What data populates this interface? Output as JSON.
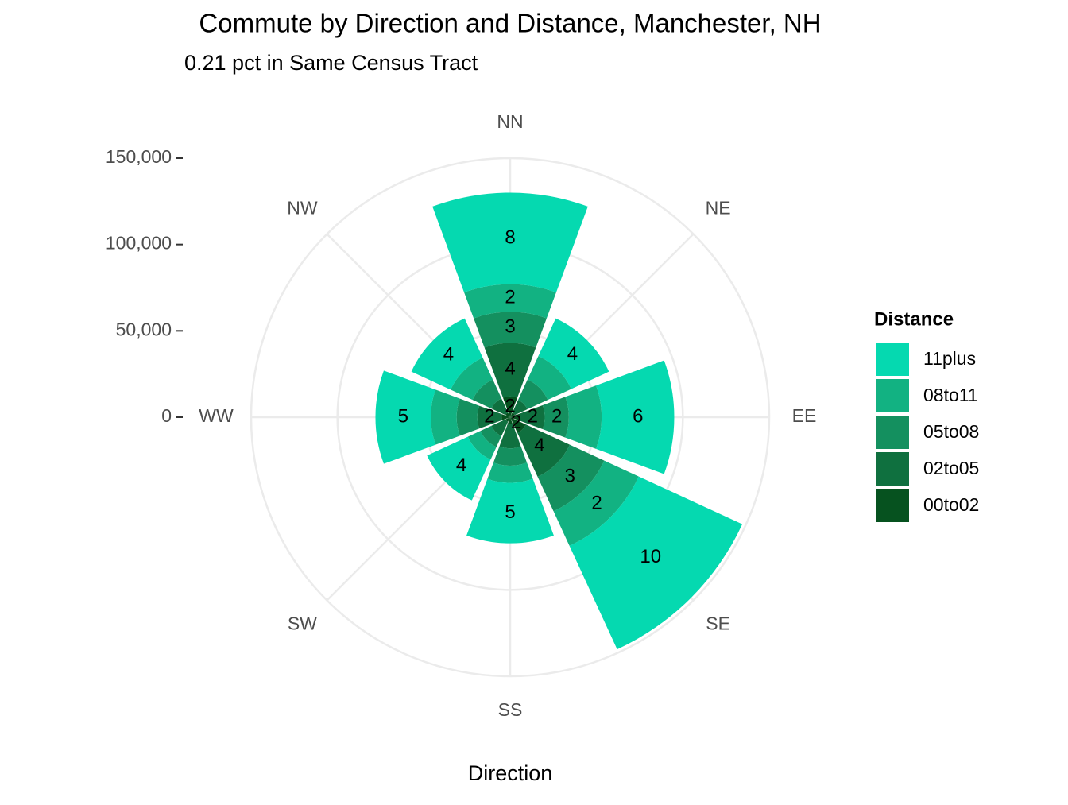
{
  "chart_data": {
    "type": "polar_stacked_bar",
    "title": "Commute by Direction and Distance, Manchester, NH",
    "subtitle": "0.21 pct in Same Census Tract",
    "x_label": "Direction",
    "legend_title": "Distance",
    "categories": [
      "NN",
      "NE",
      "EE",
      "SE",
      "SS",
      "SW",
      "WW",
      "NW"
    ],
    "series": [
      {
        "name": "00to02",
        "color": "#06521f",
        "values": [
          12000,
          3000,
          6000,
          10000,
          4000,
          3000,
          5000,
          3000
        ],
        "labels": [
          "2",
          null,
          null,
          "2",
          null,
          null,
          null,
          null
        ]
      },
      {
        "name": "02to05",
        "color": "#0f703f",
        "values": [
          31000,
          8000,
          14000,
          28000,
          14000,
          9000,
          14000,
          9000
        ],
        "labels": [
          "4",
          null,
          "2",
          "4",
          null,
          null,
          "2",
          null
        ]
      },
      {
        "name": "05to08",
        "color": "#14905f",
        "values": [
          18000,
          13000,
          14000,
          22000,
          10000,
          7000,
          12000,
          12000
        ],
        "labels": [
          "3",
          null,
          "2",
          "3",
          null,
          null,
          null,
          null
        ]
      },
      {
        "name": "08to11",
        "color": "#12b282",
        "values": [
          16000,
          15000,
          19000,
          22000,
          10000,
          8000,
          15000,
          14000
        ],
        "labels": [
          "2",
          null,
          null,
          "2",
          null,
          null,
          null,
          null
        ]
      },
      {
        "name": "11plus",
        "color": "#05d9b0",
        "values": [
          53000,
          24000,
          42000,
          66000,
          35000,
          26000,
          32000,
          25000
        ],
        "labels": [
          "8",
          "4",
          "6",
          "10",
          "5",
          "4",
          "5",
          "4"
        ]
      }
    ],
    "ylim": [
      0,
      150000
    ],
    "yticks": [
      0,
      {
        "value": 50000,
        "label": "50,000"
      },
      {
        "value": 100000,
        "label": "100,000"
      },
      {
        "value": 150000,
        "label": "150,000"
      }
    ],
    "grid": true,
    "legend": "right"
  }
}
